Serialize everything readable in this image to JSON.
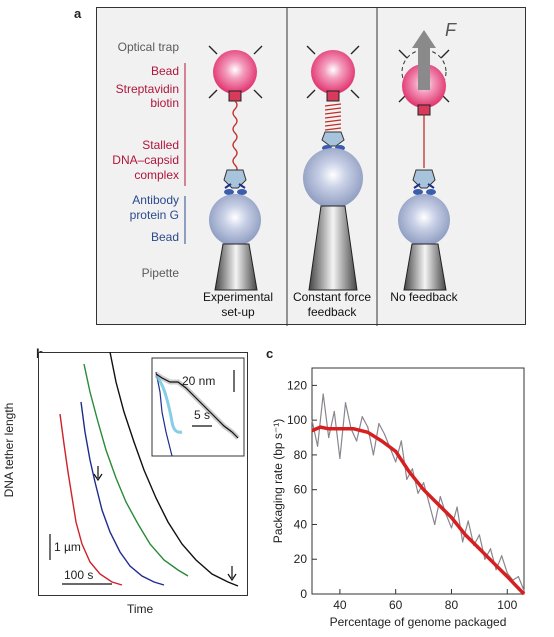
{
  "panel_a": {
    "letter": "a",
    "left_labels": {
      "optical_trap": "Optical trap",
      "bead_top": "Bead",
      "streptavidin": "Streptavidin",
      "biotin": "biotin",
      "stalled_1": "Stalled",
      "stalled_2": "DNA–capsid",
      "stalled_3": "complex",
      "antibody": "Antibody",
      "protein_g": "protein G",
      "bead_bottom": "Bead",
      "pipette": "Pipette"
    },
    "force_label": "F",
    "captions": [
      {
        "line1": "Experimental",
        "line2": "set-up"
      },
      {
        "line1": "Constant force",
        "line2": "feedback"
      },
      {
        "line1": "No feedback",
        "line2": ""
      }
    ],
    "colors": {
      "bead_pink": "#e8407a",
      "bead_blue": "#9aa8c8",
      "red_label": "#b0163c",
      "blue_label": "#2b4a8c"
    }
  },
  "panel_b": {
    "letter": "b",
    "ylabel": "DNA tether length",
    "xlabel": "Time",
    "scale_y": "1 µm",
    "scale_x": "100 s",
    "inset_scale_y": "20 nm",
    "inset_scale_x": "5 s",
    "series_colors": [
      "#d0202a",
      "#1f2c8f",
      "#2a8a3a",
      "#111111"
    ]
  },
  "panel_c": {
    "letter": "c",
    "ylabel": "Packaging rate (bp s⁻¹)",
    "xlabel": "Percentage of genome packaged"
  },
  "chart_data": {
    "type": "line",
    "title": "",
    "xlabel": "Percentage of genome packaged",
    "ylabel": "Packaging rate (bp s⁻¹)",
    "xlim": [
      30,
      106
    ],
    "ylim": [
      0,
      130
    ],
    "xticks": [
      40,
      60,
      80,
      100
    ],
    "yticks": [
      0,
      20,
      40,
      60,
      80,
      100,
      120
    ],
    "series": [
      {
        "color": "#d62020",
        "x": [
          30,
          33,
          36,
          40,
          45,
          50,
          55,
          60,
          65,
          70,
          75,
          80,
          85,
          90,
          95,
          100,
          103,
          106
        ],
        "y": [
          94,
          96,
          95,
          95,
          95,
          93,
          88,
          82,
          70,
          60,
          52,
          44,
          34,
          26,
          18,
          10,
          5,
          0
        ]
      },
      {
        "color": "#8a8590",
        "x": [
          30,
          32,
          34,
          36,
          38,
          40,
          42,
          44,
          46,
          48,
          50,
          52,
          54,
          56,
          58,
          60,
          62,
          64,
          66,
          68,
          70,
          72,
          74,
          76,
          78,
          80,
          82,
          84,
          86,
          88,
          90,
          92,
          94,
          96,
          98,
          100,
          102,
          104,
          106
        ],
        "y": [
          100,
          85,
          115,
          90,
          105,
          78,
          110,
          95,
          88,
          102,
          96,
          80,
          98,
          92,
          84,
          76,
          88,
          66,
          72,
          58,
          64,
          52,
          40,
          56,
          46,
          38,
          50,
          30,
          42,
          28,
          34,
          20,
          26,
          14,
          22,
          12,
          8,
          10,
          2
        ]
      }
    ]
  }
}
